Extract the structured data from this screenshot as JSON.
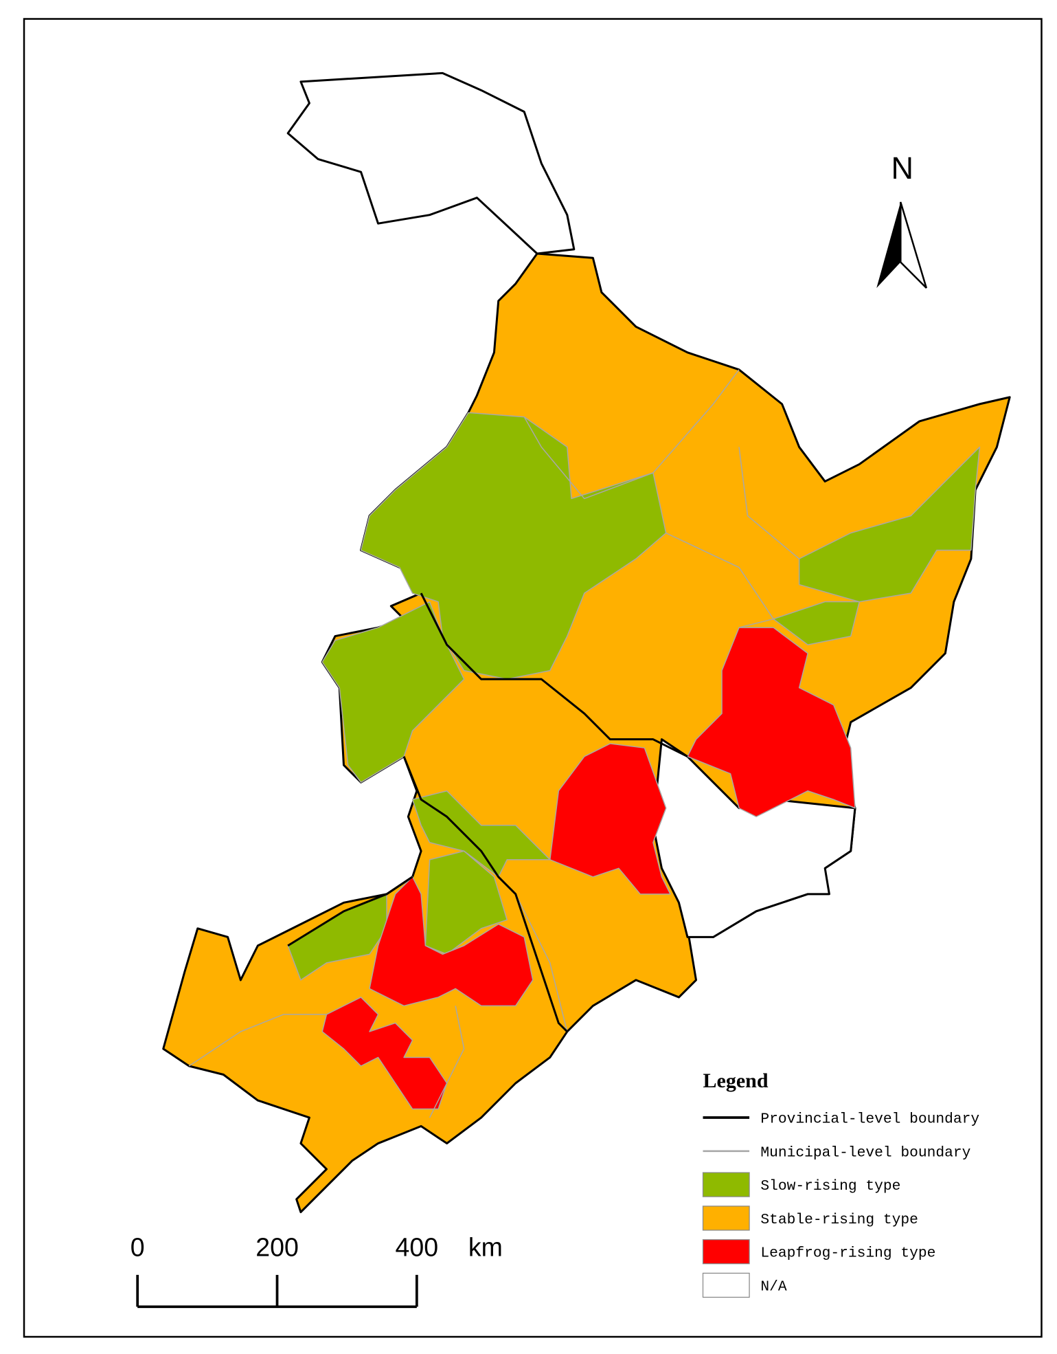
{
  "north": "N",
  "scale_bar": {
    "ticks": [
      0,
      200,
      400
    ],
    "unit": "km"
  },
  "legend": {
    "title": "Legend",
    "items": [
      {
        "label": "Provincial-level boundary",
        "color": "#000000"
      },
      {
        "label": "Municipal-level boundary",
        "color": "#a8a8a8"
      },
      {
        "label": "Slow-rising type",
        "color": "#8fba00"
      },
      {
        "label": "Stable-rising type",
        "color": "#ffb000"
      },
      {
        "label": "Leapfrog-rising type",
        "color": "#ff0000"
      },
      {
        "label": "N/A",
        "color": "#ffffff"
      }
    ]
  }
}
